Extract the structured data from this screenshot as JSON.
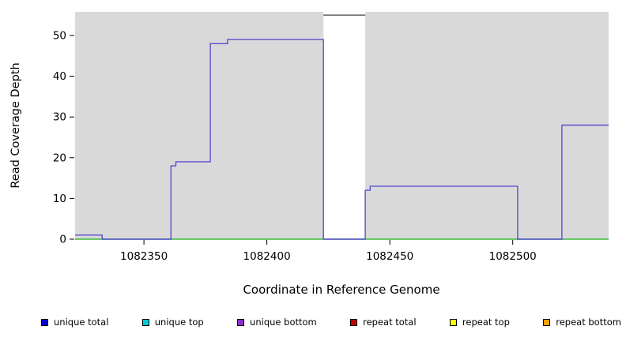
{
  "figure": {
    "bg": "#ffffff",
    "plot_bg": "#d9d9d9"
  },
  "chart_data": {
    "type": "line",
    "subtype": "step",
    "title": "",
    "xlabel": "Coordinate in Reference Genome",
    "ylabel": "Read Coverage Depth",
    "xlim": [
      1082322,
      1082539
    ],
    "ylim": [
      0,
      55.8
    ],
    "x_ticks": [
      1082350,
      1082400,
      1082450,
      1082500
    ],
    "y_ticks": [
      0,
      10,
      20,
      30,
      40,
      50
    ],
    "grid": false,
    "baseline_color": "#3cb83c",
    "series": [
      {
        "name": "read coverage depth",
        "color": "#5a4fd0",
        "step_points": [
          [
            1082322,
            1
          ],
          [
            1082333,
            0
          ],
          [
            1082361,
            18
          ],
          [
            1082363,
            19
          ],
          [
            1082377,
            48
          ],
          [
            1082384,
            49
          ],
          [
            1082423,
            0
          ],
          [
            1082440,
            12
          ],
          [
            1082442,
            13
          ],
          [
            1082502,
            0
          ],
          [
            1082520,
            28
          ]
        ],
        "end_x": 1082539
      }
    ],
    "masked_region": {
      "x1": 1082423,
      "x2": 1082440,
      "fill": "#ffffff",
      "top_value": 55,
      "top_line_color": "#404040"
    }
  },
  "legend": {
    "items": [
      {
        "label": "unique total",
        "color": "#0000cc"
      },
      {
        "label": "unique top",
        "color": "#00cdcd"
      },
      {
        "label": "unique bottom",
        "color": "#8b2fc9"
      },
      {
        "label": "repeat total",
        "color": "#c00000"
      },
      {
        "label": "repeat top",
        "color": "#ffff00"
      },
      {
        "label": "repeat bottom",
        "color": "#ff9d00"
      }
    ]
  }
}
